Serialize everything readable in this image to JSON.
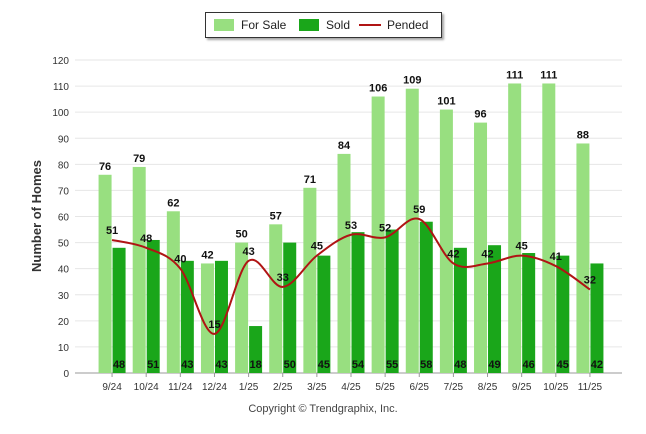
{
  "chart_data": {
    "type": "bar",
    "categories": [
      "9/24",
      "10/24",
      "11/24",
      "12/24",
      "1/25",
      "2/25",
      "3/25",
      "4/25",
      "5/25",
      "6/25",
      "7/25",
      "8/25",
      "9/25",
      "10/25",
      "11/25"
    ],
    "series": [
      {
        "name": "For Sale",
        "kind": "bar",
        "color": "#98df80",
        "values": [
          76,
          79,
          62,
          42,
          50,
          57,
          71,
          84,
          106,
          109,
          101,
          96,
          111,
          111,
          88
        ]
      },
      {
        "name": "Sold",
        "kind": "bar",
        "color": "#1aa61a",
        "values": [
          48,
          51,
          43,
          43,
          18,
          50,
          45,
          54,
          55,
          58,
          48,
          49,
          46,
          45,
          42
        ]
      },
      {
        "name": "Pended",
        "kind": "line",
        "color": "#b01414",
        "values": [
          51,
          48,
          40,
          15,
          43,
          33,
          45,
          53,
          52,
          59,
          42,
          42,
          45,
          41,
          32
        ]
      }
    ],
    "ylabel": "Number of Homes",
    "yticks": [
      0,
      10,
      20,
      30,
      40,
      50,
      60,
      70,
      80,
      90,
      100,
      110,
      120
    ],
    "ylim": [
      0,
      120
    ]
  },
  "footer": {
    "text": "Copyright © Trendgraphix, Inc."
  }
}
